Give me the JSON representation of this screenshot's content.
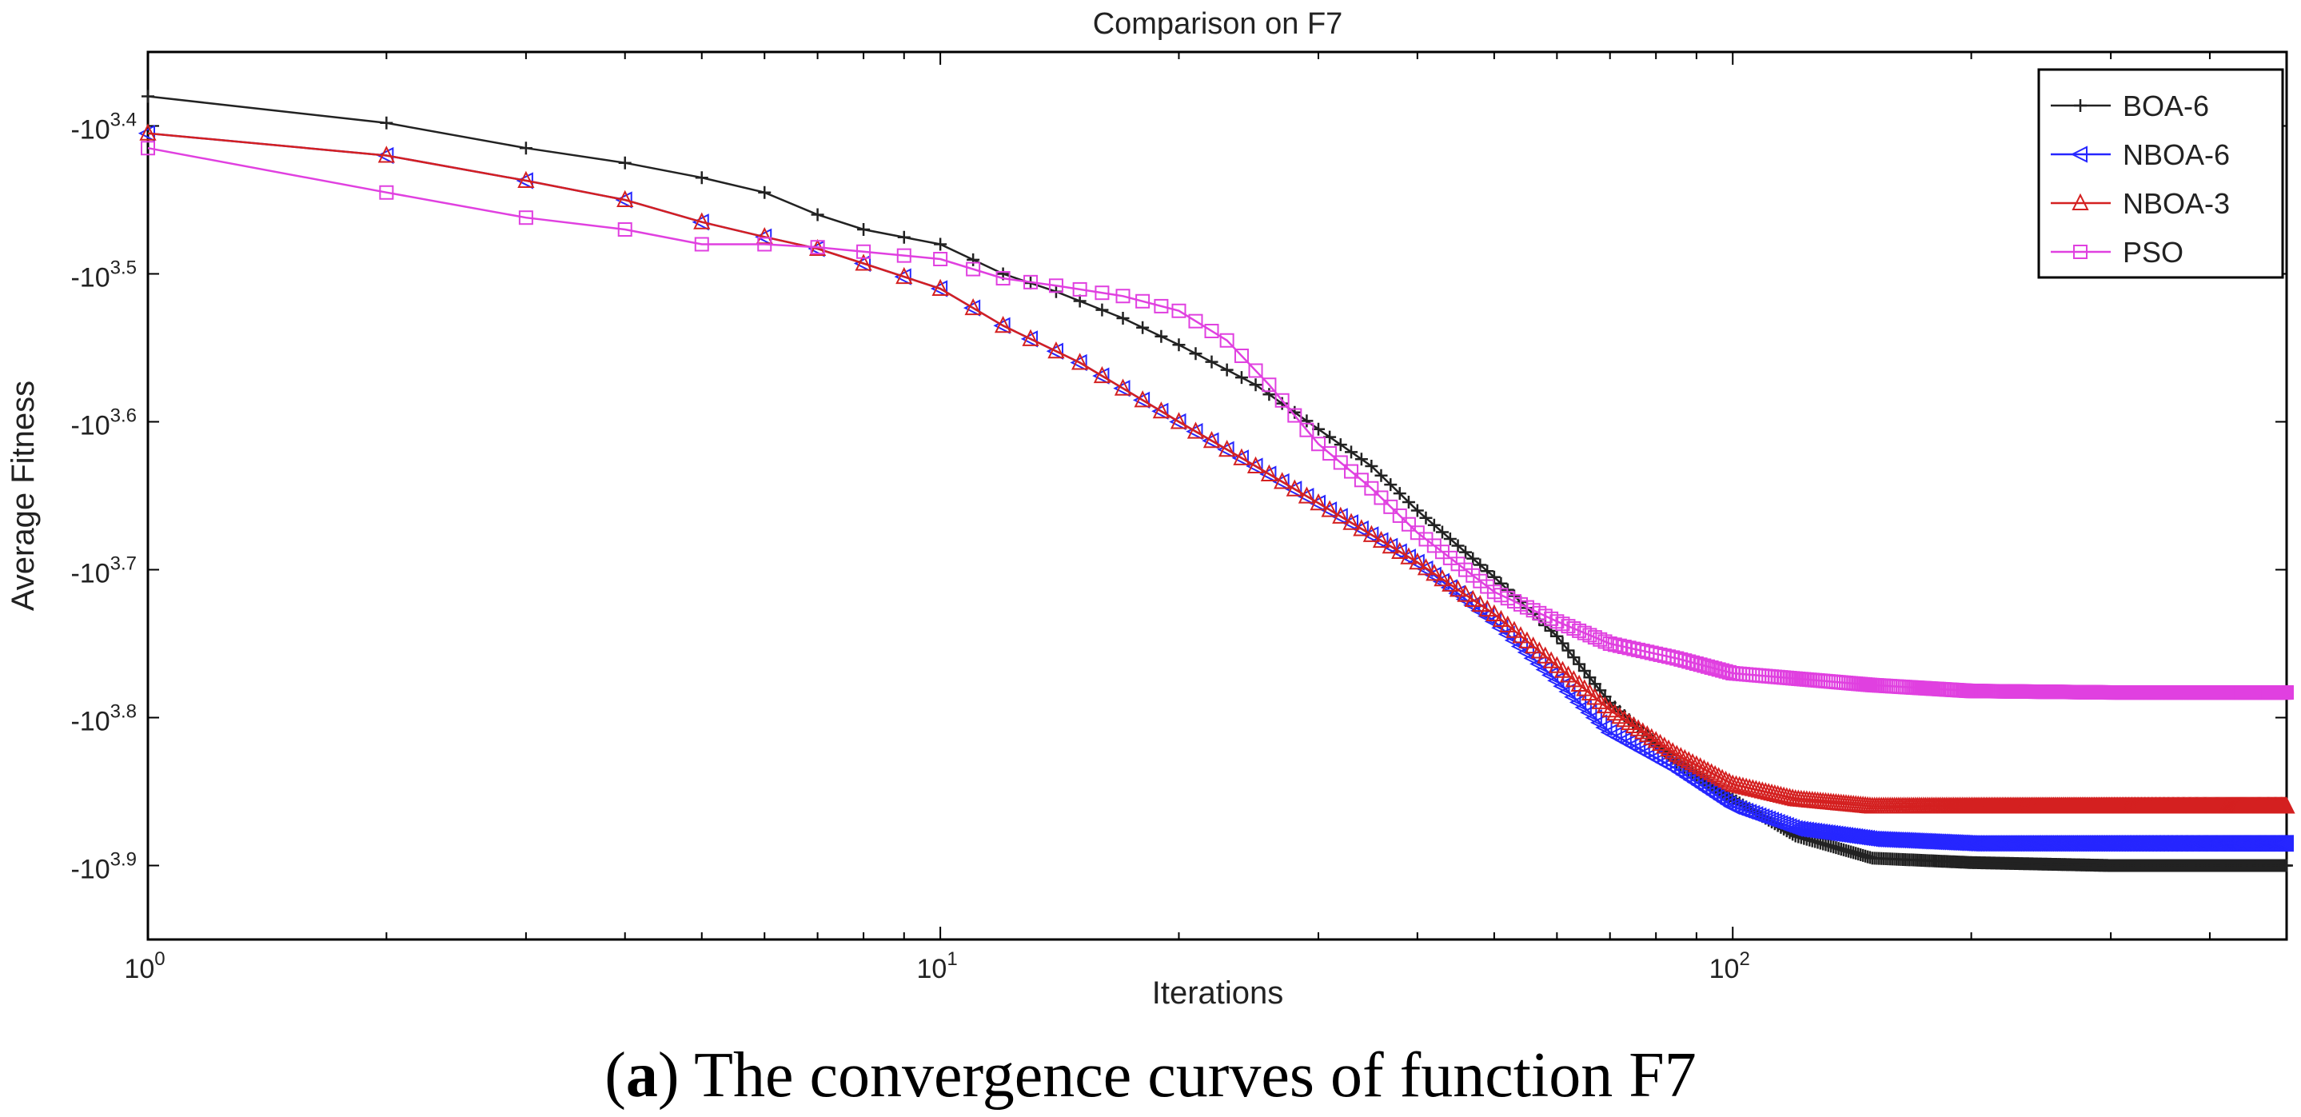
{
  "chart_data": {
    "type": "line",
    "title": "Comparison on F7",
    "xlabel": "Iterations",
    "ylabel": "Average Fitness",
    "xscale": "log",
    "xlim": [
      1,
      500
    ],
    "ylim": [
      3.35,
      3.95
    ],
    "x_ticks": [
      {
        "value": 1,
        "base": "10",
        "exp": "0"
      },
      {
        "value": 10,
        "base": "10",
        "exp": "1"
      },
      {
        "value": 100,
        "base": "10",
        "exp": "2"
      }
    ],
    "y_ticks": [
      {
        "value": 3.4,
        "base": "-10",
        "exp": "3.4"
      },
      {
        "value": 3.5,
        "base": "-10",
        "exp": "3.5"
      },
      {
        "value": 3.6,
        "base": "-10",
        "exp": "3.6"
      },
      {
        "value": 3.7,
        "base": "-10",
        "exp": "3.7"
      },
      {
        "value": 3.8,
        "base": "-10",
        "exp": "3.8"
      },
      {
        "value": 3.9,
        "base": "-10",
        "exp": "3.9"
      }
    ],
    "legend_position": "top-right",
    "series": [
      {
        "name": "BOA-6",
        "color": "#222222",
        "marker": "plus",
        "points": [
          [
            1,
            3.38
          ],
          [
            2,
            3.398
          ],
          [
            3,
            3.415
          ],
          [
            4,
            3.425
          ],
          [
            5,
            3.435
          ],
          [
            6,
            3.445
          ],
          [
            7,
            3.46
          ],
          [
            8,
            3.47
          ],
          [
            10,
            3.48
          ],
          [
            12,
            3.5
          ],
          [
            14,
            3.512
          ],
          [
            17,
            3.53
          ],
          [
            20,
            3.548
          ],
          [
            25,
            3.575
          ],
          [
            30,
            3.605
          ],
          [
            35,
            3.63
          ],
          [
            40,
            3.66
          ],
          [
            50,
            3.705
          ],
          [
            60,
            3.745
          ],
          [
            70,
            3.79
          ],
          [
            85,
            3.83
          ],
          [
            100,
            3.855
          ],
          [
            120,
            3.88
          ],
          [
            150,
            3.895
          ],
          [
            200,
            3.898
          ],
          [
            300,
            3.9
          ],
          [
            500,
            3.9
          ]
        ]
      },
      {
        "name": "NBOA-6",
        "color": "#2626ff",
        "marker": "triangle-left",
        "points": [
          [
            1,
            3.405
          ],
          [
            2,
            3.42
          ],
          [
            3,
            3.437
          ],
          [
            4,
            3.45
          ],
          [
            5,
            3.465
          ],
          [
            6,
            3.475
          ],
          [
            7,
            3.483
          ],
          [
            8,
            3.493
          ],
          [
            10,
            3.51
          ],
          [
            12,
            3.535
          ],
          [
            15,
            3.56
          ],
          [
            20,
            3.6
          ],
          [
            25,
            3.63
          ],
          [
            30,
            3.655
          ],
          [
            40,
            3.695
          ],
          [
            50,
            3.735
          ],
          [
            60,
            3.775
          ],
          [
            70,
            3.81
          ],
          [
            85,
            3.835
          ],
          [
            100,
            3.86
          ],
          [
            120,
            3.875
          ],
          [
            150,
            3.882
          ],
          [
            200,
            3.885
          ],
          [
            300,
            3.885
          ],
          [
            500,
            3.885
          ]
        ]
      },
      {
        "name": "NBOA-3",
        "color": "#d42020",
        "marker": "triangle-up",
        "points": [
          [
            1,
            3.405
          ],
          [
            2,
            3.42
          ],
          [
            3,
            3.437
          ],
          [
            4,
            3.45
          ],
          [
            5,
            3.465
          ],
          [
            6,
            3.475
          ],
          [
            7,
            3.483
          ],
          [
            8,
            3.493
          ],
          [
            10,
            3.51
          ],
          [
            12,
            3.535
          ],
          [
            15,
            3.56
          ],
          [
            20,
            3.6
          ],
          [
            25,
            3.63
          ],
          [
            30,
            3.655
          ],
          [
            40,
            3.695
          ],
          [
            50,
            3.73
          ],
          [
            60,
            3.765
          ],
          [
            70,
            3.795
          ],
          [
            85,
            3.825
          ],
          [
            100,
            3.845
          ],
          [
            120,
            3.855
          ],
          [
            150,
            3.86
          ],
          [
            200,
            3.86
          ],
          [
            300,
            3.86
          ],
          [
            500,
            3.86
          ]
        ]
      },
      {
        "name": "PSO",
        "color": "#e040e0",
        "marker": "square",
        "points": [
          [
            1,
            3.415
          ],
          [
            2,
            3.445
          ],
          [
            3,
            3.462
          ],
          [
            4,
            3.47
          ],
          [
            5,
            3.48
          ],
          [
            6,
            3.48
          ],
          [
            7,
            3.482
          ],
          [
            8,
            3.485
          ],
          [
            10,
            3.49
          ],
          [
            12,
            3.503
          ],
          [
            14,
            3.508
          ],
          [
            17,
            3.515
          ],
          [
            20,
            3.525
          ],
          [
            23,
            3.545
          ],
          [
            26,
            3.575
          ],
          [
            30,
            3.615
          ],
          [
            35,
            3.645
          ],
          [
            40,
            3.675
          ],
          [
            50,
            3.715
          ],
          [
            60,
            3.735
          ],
          [
            70,
            3.75
          ],
          [
            85,
            3.76
          ],
          [
            100,
            3.77
          ],
          [
            150,
            3.778
          ],
          [
            200,
            3.782
          ],
          [
            300,
            3.783
          ],
          [
            500,
            3.783
          ]
        ]
      }
    ]
  },
  "caption": {
    "letter": "a",
    "text": " The convergence curves of function F7"
  }
}
